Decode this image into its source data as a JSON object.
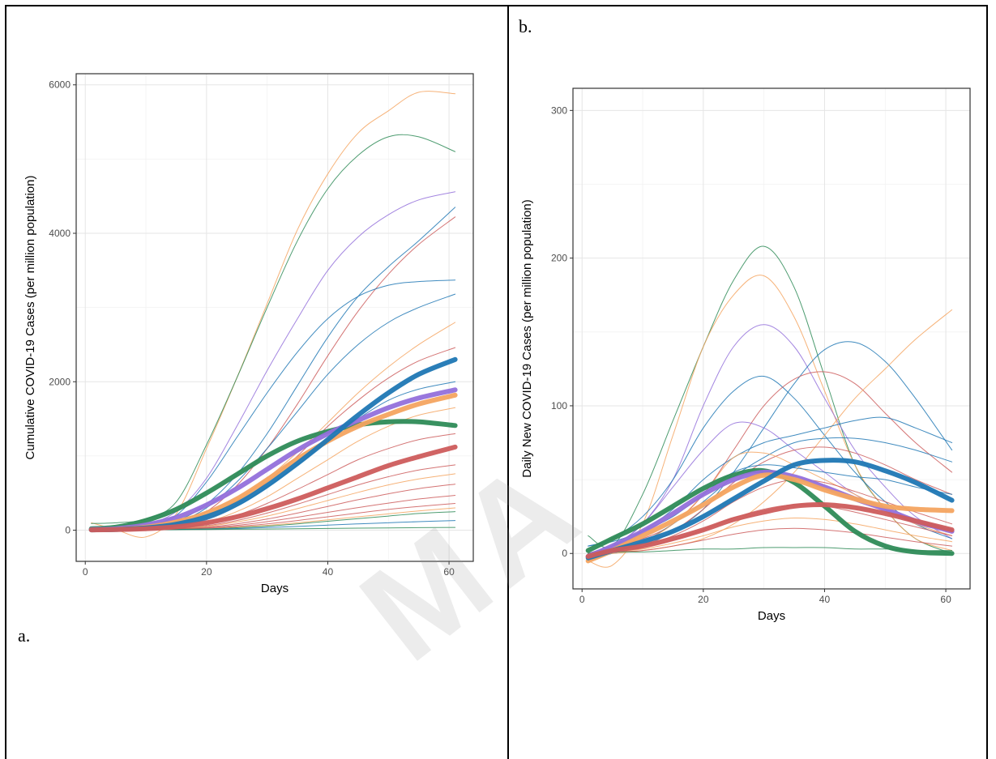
{
  "panels": {
    "a_label": "a.",
    "b_label": "b."
  },
  "watermark": "MA",
  "chart_data": [
    {
      "id": "a",
      "type": "line",
      "xlabel": "Days",
      "ylabel": "Cumulative COVID-19 Cases (per million population)",
      "xlim": [
        -1.5,
        64
      ],
      "ylim": [
        -420,
        6150
      ],
      "xticks": [
        0,
        20,
        40,
        60
      ],
      "yticks": [
        0,
        2000,
        4000,
        6000
      ],
      "grid": true,
      "x": [
        1,
        5,
        10,
        15,
        20,
        25,
        30,
        35,
        40,
        45,
        50,
        55,
        61
      ],
      "series": [
        {
          "color": "#f4a460",
          "width": 1,
          "values": [
            100,
            10,
            -90,
            220,
            1100,
            2050,
            3050,
            4050,
            4800,
            5350,
            5650,
            5900,
            5880
          ]
        },
        {
          "color": "#2e8b57",
          "width": 1,
          "values": [
            90,
            100,
            150,
            380,
            1150,
            2050,
            3000,
            3900,
            4600,
            5050,
            5300,
            5300,
            5100
          ]
        },
        {
          "color": "#9370db",
          "width": 1,
          "values": [
            10,
            20,
            80,
            250,
            700,
            1400,
            2150,
            2850,
            3500,
            3950,
            4250,
            4450,
            4560
          ]
        },
        {
          "color": "#1f77b4",
          "width": 1,
          "values": [
            20,
            20,
            40,
            120,
            350,
            750,
            1300,
            1950,
            2600,
            3150,
            3550,
            3900,
            4350
          ]
        },
        {
          "color": "#cd5c5c",
          "width": 1,
          "values": [
            10,
            15,
            30,
            80,
            250,
            600,
            1100,
            1700,
            2350,
            2950,
            3450,
            3850,
            4220
          ]
        },
        {
          "color": "#1f77b4",
          "width": 1,
          "values": [
            20,
            30,
            60,
            200,
            650,
            1250,
            1850,
            2400,
            2850,
            3150,
            3300,
            3350,
            3370
          ]
        },
        {
          "color": "#1f77b4",
          "width": 1,
          "values": [
            10,
            15,
            30,
            100,
            300,
            650,
            1100,
            1600,
            2100,
            2500,
            2800,
            3000,
            3180
          ]
        },
        {
          "color": "#f4a460",
          "width": 1,
          "values": [
            5,
            10,
            20,
            60,
            180,
            400,
            700,
            1050,
            1450,
            1850,
            2200,
            2500,
            2800
          ]
        },
        {
          "color": "#cd5c5c",
          "width": 1,
          "values": [
            5,
            10,
            20,
            50,
            150,
            350,
            650,
            1000,
            1400,
            1750,
            2050,
            2280,
            2460
          ]
        },
        {
          "color": "#1f77b4",
          "width": 1,
          "values": [
            5,
            10,
            20,
            50,
            140,
            320,
            580,
            880,
            1200,
            1500,
            1750,
            1900,
            2000
          ]
        },
        {
          "color": "#f4a460",
          "width": 1,
          "values": [
            5,
            10,
            15,
            40,
            110,
            250,
            450,
            700,
            950,
            1200,
            1400,
            1550,
            1650
          ]
        },
        {
          "color": "#cd5c5c",
          "width": 1,
          "values": [
            5,
            10,
            15,
            35,
            90,
            200,
            360,
            550,
            750,
            950,
            1100,
            1220,
            1300
          ]
        },
        {
          "color": "#cd5c5c",
          "width": 1,
          "values": [
            5,
            8,
            12,
            25,
            60,
            130,
            230,
            350,
            480,
            610,
            720,
            810,
            880
          ]
        },
        {
          "color": "#f4a460",
          "width": 1,
          "values": [
            5,
            8,
            12,
            22,
            50,
            110,
            190,
            290,
            400,
            510,
            610,
            690,
            760
          ]
        },
        {
          "color": "#cd5c5c",
          "width": 1,
          "values": [
            5,
            7,
            10,
            18,
            40,
            85,
            150,
            230,
            320,
            410,
            490,
            560,
            620
          ]
        },
        {
          "color": "#cd5c5c",
          "width": 1,
          "values": [
            5,
            7,
            9,
            15,
            32,
            65,
            115,
            175,
            240,
            305,
            365,
            420,
            470
          ]
        },
        {
          "color": "#cd5c5c",
          "width": 1,
          "values": [
            5,
            6,
            8,
            12,
            25,
            50,
            85,
            130,
            180,
            230,
            280,
            320,
            360
          ]
        },
        {
          "color": "#f4a460",
          "width": 1,
          "values": [
            5,
            6,
            8,
            11,
            20,
            38,
            65,
            100,
            140,
            180,
            220,
            260,
            300
          ]
        },
        {
          "color": "#2e8b57",
          "width": 1,
          "values": [
            5,
            6,
            8,
            10,
            18,
            33,
            55,
            85,
            120,
            155,
            190,
            225,
            250
          ]
        },
        {
          "color": "#1f77b4",
          "width": 1,
          "values": [
            5,
            6,
            7,
            9,
            14,
            22,
            35,
            50,
            68,
            85,
            100,
            115,
            130
          ]
        },
        {
          "color": "#2e8b57",
          "width": 1,
          "values": [
            5,
            5,
            6,
            7,
            9,
            12,
            15,
            19,
            23,
            27,
            31,
            34,
            37
          ]
        },
        {
          "color": "#2e8b57",
          "width": 6,
          "values": [
            20,
            40,
            130,
            280,
            500,
            750,
            1000,
            1200,
            1330,
            1420,
            1460,
            1460,
            1410
          ]
        },
        {
          "color": "#9370db",
          "width": 6,
          "values": [
            10,
            20,
            70,
            170,
            340,
            560,
            820,
            1080,
            1300,
            1480,
            1650,
            1780,
            1890
          ]
        },
        {
          "color": "#f4a460",
          "width": 6,
          "values": [
            5,
            10,
            40,
            110,
            230,
            420,
            680,
            960,
            1200,
            1400,
            1560,
            1700,
            1820
          ]
        },
        {
          "color": "#1f77b4",
          "width": 6,
          "values": [
            5,
            10,
            30,
            80,
            180,
            350,
            600,
            900,
            1220,
            1550,
            1850,
            2100,
            2300
          ]
        },
        {
          "color": "#cd5c5c",
          "width": 6,
          "values": [
            5,
            8,
            20,
            45,
            100,
            180,
            290,
            420,
            570,
            720,
            870,
            990,
            1120
          ]
        }
      ]
    },
    {
      "id": "b",
      "type": "line",
      "xlabel": "Days",
      "ylabel": "Daily New COVID-19 Cases (per million population)",
      "xlim": [
        -1.5,
        64
      ],
      "ylim": [
        -24,
        315
      ],
      "xticks": [
        0,
        20,
        40,
        60
      ],
      "yticks": [
        0,
        100,
        200,
        300
      ],
      "grid": true,
      "x": [
        1,
        5,
        10,
        15,
        20,
        25,
        30,
        35,
        40,
        45,
        50,
        55,
        61
      ],
      "series": [
        {
          "color": "#2e8b57",
          "width": 1,
          "values": [
            12,
            5,
            40,
            90,
            140,
            185,
            208,
            180,
            120,
            60,
            30,
            10,
            0
          ]
        },
        {
          "color": "#f4a460",
          "width": 1,
          "values": [
            -5,
            -8,
            20,
            80,
            140,
            175,
            188,
            160,
            110,
            60,
            30,
            10,
            2
          ]
        },
        {
          "color": "#9370db",
          "width": 1,
          "values": [
            0,
            5,
            20,
            50,
            100,
            140,
            155,
            140,
            105,
            70,
            45,
            25,
            10
          ]
        },
        {
          "color": "#1f77b4",
          "width": 1,
          "values": [
            5,
            10,
            25,
            50,
            85,
            110,
            120,
            105,
            80,
            55,
            35,
            20,
            10
          ]
        },
        {
          "color": "#1f77b4",
          "width": 1,
          "values": [
            -5,
            0,
            5,
            15,
            30,
            55,
            85,
            115,
            138,
            143,
            130,
            105,
            70
          ]
        },
        {
          "color": "#cd5c5c",
          "width": 1,
          "values": [
            0,
            5,
            10,
            20,
            40,
            70,
            100,
            118,
            123,
            115,
            95,
            75,
            55
          ]
        },
        {
          "color": "#f4a460",
          "width": 1,
          "values": [
            0,
            0,
            2,
            5,
            10,
            20,
            35,
            55,
            80,
            105,
            125,
            145,
            165
          ]
        },
        {
          "color": "#1f77b4",
          "width": 1,
          "values": [
            0,
            5,
            15,
            30,
            50,
            65,
            75,
            80,
            85,
            90,
            92,
            85,
            75
          ]
        },
        {
          "color": "#9370db",
          "width": 1,
          "values": [
            0,
            5,
            20,
            45,
            70,
            88,
            85,
            70,
            55,
            40,
            30,
            20,
            15
          ]
        },
        {
          "color": "#1f77b4",
          "width": 1,
          "values": [
            0,
            2,
            8,
            20,
            35,
            52,
            65,
            75,
            78,
            78,
            75,
            70,
            62
          ]
        },
        {
          "color": "#cd5c5c",
          "width": 1,
          "values": [
            0,
            2,
            6,
            15,
            30,
            48,
            62,
            70,
            72,
            68,
            60,
            50,
            40
          ]
        },
        {
          "color": "#f4a460",
          "width": 1,
          "values": [
            0,
            2,
            8,
            20,
            40,
            65,
            68,
            60,
            50,
            40,
            30,
            20,
            12
          ]
        },
        {
          "color": "#1f77b4",
          "width": 1,
          "values": [
            5,
            8,
            15,
            25,
            40,
            55,
            60,
            58,
            55,
            52,
            50,
            45,
            40
          ]
        },
        {
          "color": "#cd5c5c",
          "width": 1,
          "values": [
            0,
            2,
            5,
            12,
            22,
            35,
            45,
            50,
            48,
            42,
            35,
            28,
            20
          ]
        },
        {
          "color": "#cd5c5c",
          "width": 1,
          "values": [
            0,
            1,
            4,
            9,
            16,
            24,
            30,
            33,
            32,
            28,
            23,
            18,
            12
          ]
        },
        {
          "color": "#f4a460",
          "width": 1,
          "values": [
            0,
            1,
            3,
            7,
            12,
            18,
            22,
            24,
            23,
            20,
            16,
            12,
            8
          ]
        },
        {
          "color": "#cd5c5c",
          "width": 1,
          "values": [
            0,
            1,
            2,
            5,
            9,
            13,
            16,
            17,
            16,
            14,
            11,
            8,
            5
          ]
        },
        {
          "color": "#2e8b57",
          "width": 1,
          "values": [
            0,
            1,
            1,
            2,
            3,
            3,
            4,
            4,
            4,
            3,
            3,
            2,
            2
          ]
        },
        {
          "color": "#2e8b57",
          "width": 6,
          "values": [
            2,
            10,
            20,
            32,
            44,
            53,
            56,
            48,
            32,
            15,
            5,
            1,
            0
          ]
        },
        {
          "color": "#9370db",
          "width": 6,
          "values": [
            -2,
            5,
            15,
            27,
            40,
            50,
            55,
            52,
            45,
            37,
            30,
            22,
            15
          ]
        },
        {
          "color": "#f4a460",
          "width": 6,
          "values": [
            -5,
            2,
            12,
            22,
            33,
            45,
            53,
            50,
            43,
            37,
            32,
            30,
            29
          ]
        },
        {
          "color": "#1f77b4",
          "width": 6,
          "values": [
            -3,
            2,
            8,
            15,
            25,
            37,
            49,
            60,
            63,
            62,
            56,
            48,
            36
          ]
        },
        {
          "color": "#cd5c5c",
          "width": 6,
          "values": [
            -2,
            2,
            5,
            10,
            16,
            23,
            28,
            32,
            33,
            31,
            27,
            22,
            16
          ]
        }
      ]
    }
  ]
}
